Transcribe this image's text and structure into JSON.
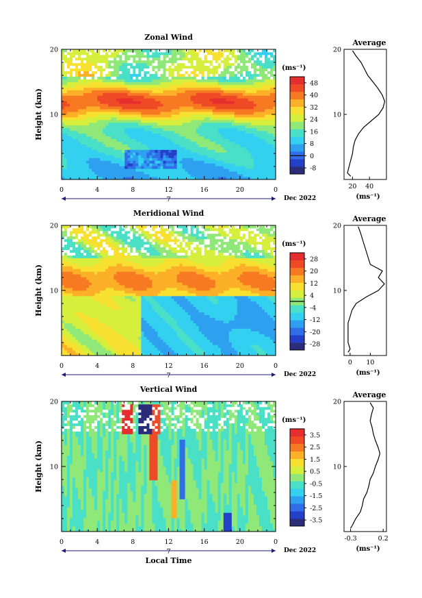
{
  "figure": {
    "xlabel": "Local Time",
    "date_label": "Dec 2022",
    "day_marker": "7",
    "unit_label": "(ms⁻¹)",
    "colors": {
      "colormap": [
        "#2b2d7b",
        "#2540c8",
        "#2f6ee8",
        "#2fa0f0",
        "#33d0f0",
        "#4ae0c8",
        "#8fe878",
        "#d6ee3c",
        "#f8e030",
        "#fbb028",
        "#f77a22",
        "#ef4a26",
        "#e62e2e"
      ],
      "blank": "#ffffff",
      "frame": "#000000"
    }
  },
  "chart_data": [
    {
      "type": "heatmap",
      "title": "Zonal Wind",
      "ylabel": "Height (km)",
      "x_ticks": [
        "0",
        "4",
        "8",
        "12",
        "16",
        "20",
        "0"
      ],
      "x_range_hours": [
        0,
        24
      ],
      "y_ticks": [
        "10",
        "20"
      ],
      "y_range_km": [
        0,
        20
      ],
      "colorbar": {
        "ticks": [
          "48",
          "40",
          "32",
          "24",
          "16",
          "8",
          "0",
          "-8"
        ],
        "range": [
          -12,
          52
        ],
        "contour_at": 0
      },
      "features": "strong westerly jet (~40-48 m/s) near 10-14 km, weak or easterly (<0) patches near 2-4 km at 8-12 LT, missing data above ~15 km",
      "average_profile": {
        "title": "Average",
        "xlabel": "(ms⁻¹)",
        "x_ticks": [
          "20",
          "40"
        ],
        "x_range": [
          10,
          60
        ],
        "y_ticks": [
          "10",
          "20"
        ],
        "height_km": [
          0.5,
          1.0,
          2.0,
          3.0,
          4.0,
          5.0,
          6.0,
          7.0,
          8.0,
          9.0,
          10.0,
          11.0,
          12.0,
          13.0,
          14.0,
          15.0,
          16.0,
          17.0,
          18.0,
          19.0,
          19.8
        ],
        "speed": [
          18,
          14,
          16,
          18,
          20,
          21,
          23,
          27,
          33,
          42,
          51,
          56,
          58,
          55,
          50,
          44,
          38,
          34,
          30,
          24,
          20
        ]
      }
    },
    {
      "type": "heatmap",
      "title": "Meridional Wind",
      "ylabel": "Height (km)",
      "x_ticks": [
        "0",
        "4",
        "8",
        "12",
        "16",
        "20",
        "0"
      ],
      "x_range_hours": [
        0,
        24
      ],
      "y_ticks": [
        "10",
        "20"
      ],
      "y_range_km": [
        0,
        20
      ],
      "colorbar": {
        "ticks": [
          "28",
          "20",
          "12",
          "4",
          "-4",
          "-12",
          "-20",
          "-28"
        ],
        "range": [
          -32,
          32
        ],
        "contour_at": 0
      },
      "features": "southerly band 8-14 km, northerly flow below ~9 km after 10 LT",
      "average_profile": {
        "title": "Average",
        "xlabel": "(ms⁻¹)",
        "x_ticks": [
          "0",
          "10"
        ],
        "x_range": [
          -3,
          18
        ],
        "y_ticks": [
          "10",
          "20"
        ],
        "height_km": [
          0.5,
          1.0,
          2.0,
          3.0,
          4.0,
          5.0,
          6.0,
          7.0,
          8.0,
          9.0,
          10.0,
          11.0,
          12.0,
          13.0,
          14.0,
          15.0,
          16.0,
          17.0,
          18.0,
          19.0,
          19.8
        ],
        "speed": [
          -1,
          0,
          -1,
          -1,
          -1,
          -1,
          0,
          1,
          3,
          8,
          14,
          17,
          14,
          16,
          10,
          9,
          8,
          7,
          6,
          5,
          4
        ]
      }
    },
    {
      "type": "heatmap",
      "title": "Vertical Wind",
      "ylabel": "Height (km)",
      "x_ticks": [
        "0",
        "4",
        "8",
        "12",
        "16",
        "20",
        "0"
      ],
      "x_range_hours": [
        0,
        24
      ],
      "y_ticks": [
        "10",
        "20"
      ],
      "y_range_km": [
        0,
        20
      ],
      "colorbar": {
        "ticks": [
          "3.5",
          "2.5",
          "1.5",
          "0.5",
          "-0.5",
          "-1.5",
          "-2.5",
          "-3.5"
        ],
        "range": [
          -4,
          4
        ]
      },
      "features": "mostly near zero; strong up/down couplets near 16-19 km around 7-11 LT",
      "average_profile": {
        "title": "Average",
        "xlabel": "(ms⁻¹)",
        "x_ticks": [
          "-0.3",
          "0.2"
        ],
        "x_range": [
          -0.4,
          0.25
        ],
        "y_ticks": [
          "10",
          "20"
        ],
        "height_km": [
          0.5,
          1.0,
          2.0,
          3.0,
          4.0,
          5.0,
          6.0,
          7.0,
          8.0,
          9.0,
          10.0,
          11.0,
          12.0,
          13.0,
          14.0,
          15.0,
          16.0,
          17.0,
          18.0,
          19.0,
          19.8
        ],
        "speed": [
          -0.3,
          -0.27,
          -0.22,
          -0.15,
          -0.12,
          -0.1,
          -0.05,
          -0.02,
          0.0,
          0.05,
          0.08,
          0.12,
          0.15,
          0.12,
          0.08,
          0.05,
          0.03,
          0.0,
          0.02,
          0.05,
          0.0
        ]
      }
    }
  ]
}
